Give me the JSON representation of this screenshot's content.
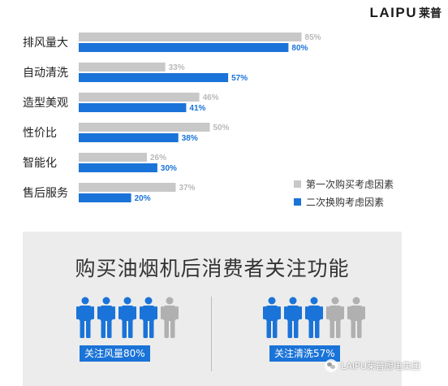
{
  "brand": {
    "logo_text": "LAIPU",
    "logo_cn": "莱普"
  },
  "chart_data": {
    "type": "bar",
    "orientation": "horizontal",
    "categories": [
      "排风量大",
      "自动清洗",
      "造型美观",
      "性价比",
      "智能化",
      "售后服务"
    ],
    "series": [
      {
        "name": "第一次购买考虑因素",
        "values": [
          85,
          33,
          46,
          50,
          26,
          37
        ],
        "labels": [
          "85%",
          "33%",
          "46%",
          "50%",
          "26%",
          "37%"
        ],
        "color": "#c8c8c8"
      },
      {
        "name": "二次换购考虑因素",
        "values": [
          80,
          57,
          41,
          38,
          30,
          20
        ],
        "labels": [
          "80%",
          "57%",
          "41%",
          "38%",
          "30%",
          "20%"
        ],
        "color": "#1a73d8"
      }
    ],
    "xlim": [
      0,
      100
    ],
    "legend_position": "bottom-right",
    "grid": false
  },
  "panel": {
    "title": "购买油烟机后消费者关注功能",
    "groups": [
      {
        "tag": "关注风量80%",
        "highlighted": 4,
        "total": 5,
        "value": 80
      },
      {
        "tag": "关注清洗57%",
        "highlighted": 3,
        "total": 5,
        "value": 57
      }
    ]
  },
  "watermark": {
    "text": "LAIPU莱普厨电集团",
    "icon": "wechat-icon"
  }
}
